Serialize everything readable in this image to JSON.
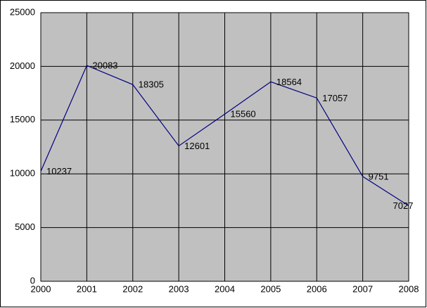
{
  "chart_data": {
    "type": "line",
    "x": [
      2000,
      2001,
      2002,
      2003,
      2004,
      2005,
      2006,
      2007,
      2008
    ],
    "xlim": [
      2000,
      2008
    ],
    "xticks": [
      2000,
      2001,
      2002,
      2003,
      2004,
      2005,
      2006,
      2007,
      2008
    ],
    "series": [
      {
        "color": "#000080",
        "values": [
          10237,
          20083,
          18305,
          12601,
          15560,
          18564,
          17057,
          9751,
          7027
        ]
      }
    ],
    "ylim": [
      0,
      25000
    ],
    "yticks": [
      0,
      5000,
      10000,
      15000,
      20000,
      25000
    ],
    "grid": true,
    "plot_background": "#c0c0c0",
    "data_labels": true
  }
}
